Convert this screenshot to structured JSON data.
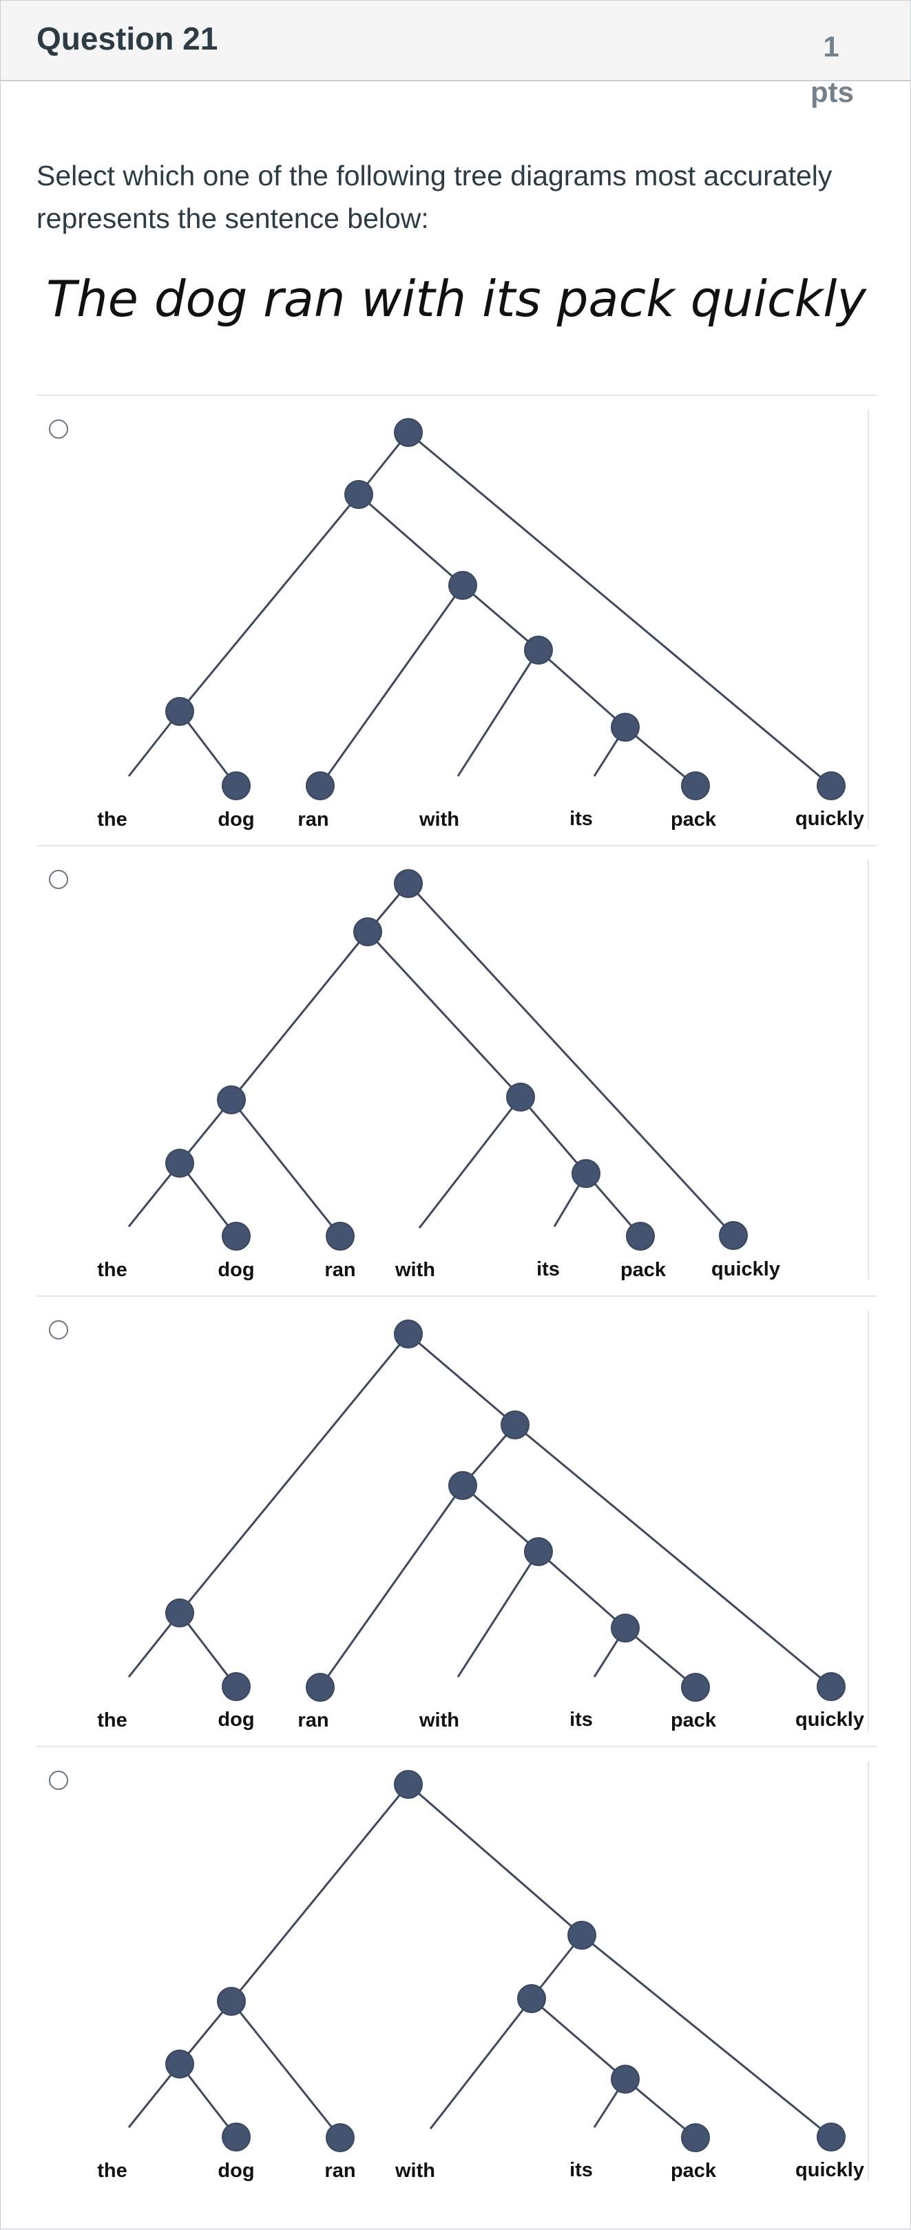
{
  "question": {
    "title": "Question 21",
    "points": "1 pts",
    "prompt": "Select which one of the following tree diagrams most accurately represents the sentence below:",
    "sentence": "The dog ran with its pack quickly"
  },
  "answers": [
    {
      "words": [
        "the",
        "dog",
        "ran",
        "with",
        "its",
        "pack",
        "quickly"
      ],
      "node_color": "#445470"
    },
    {
      "words": [
        "the",
        "dog",
        "ran",
        "with",
        "its",
        "pack",
        "quickly"
      ],
      "node_color": "#445470"
    },
    {
      "words": [
        "the",
        "dog",
        "ran",
        "with",
        "its",
        "pack",
        "quickly"
      ],
      "node_color": "#445470"
    },
    {
      "words": [
        "the",
        "dog",
        "ran",
        "with",
        "its",
        "pack",
        "quickly"
      ],
      "node_color": "#445470"
    }
  ]
}
